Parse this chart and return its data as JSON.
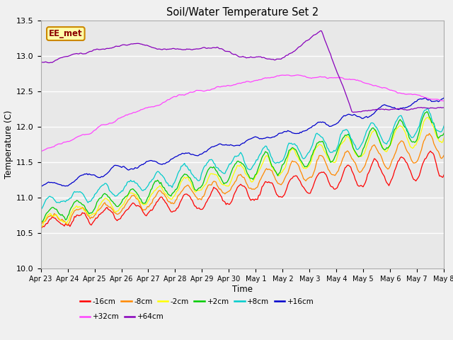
{
  "title": "Soil/Water Temperature Set 2",
  "xlabel": "Time",
  "ylabel": "Temperature (C)",
  "ylim": [
    10.0,
    13.5
  ],
  "xlim": [
    0,
    15
  ],
  "fig_bg": "#f0f0f0",
  "plot_bg": "#e8e8e8",
  "xtick_labels": [
    "Apr 23",
    "Apr 24",
    "Apr 25",
    "Apr 26",
    "Apr 27",
    "Apr 28",
    "Apr 29",
    "Apr 30",
    "May 1",
    "May 2",
    "May 3",
    "May 4",
    "May 5",
    "May 6",
    "May 7",
    "May 8"
  ],
  "series_colors": [
    "#ff0000",
    "#ff8800",
    "#ffff00",
    "#00cc00",
    "#00cccc",
    "#0000cc",
    "#ff44ff",
    "#8800bb"
  ],
  "series_labels": [
    "-16cm",
    "-8cm",
    "-2cm",
    "+2cm",
    "+8cm",
    "+16cm",
    "+32cm",
    "+64cm"
  ],
  "annotation_text": "EE_met",
  "annotation_bg": "#ffffaa",
  "annotation_border": "#cc8800",
  "grid_color": "#ffffff",
  "yticks": [
    10.0,
    10.5,
    11.0,
    11.5,
    12.0,
    12.5,
    13.0,
    13.5
  ]
}
